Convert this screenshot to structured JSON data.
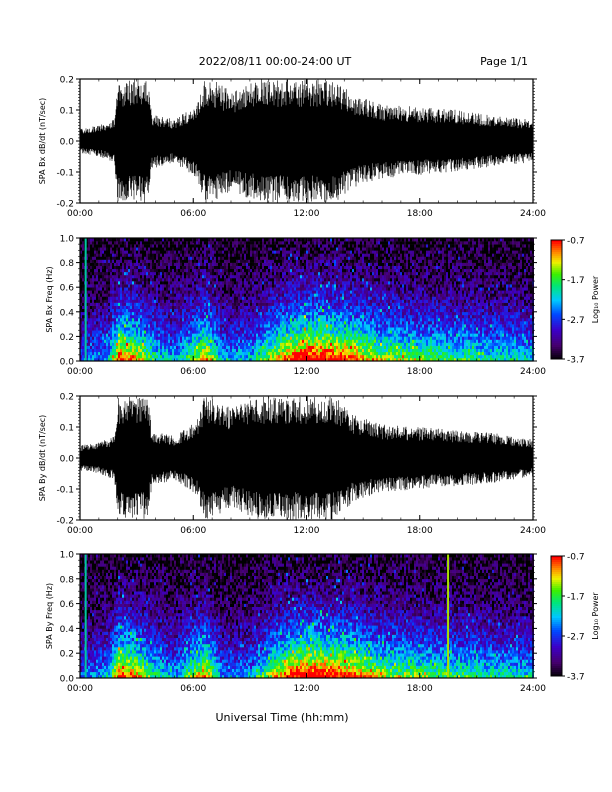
{
  "header": {
    "date_range": "2022/08/11  00:00-24:00 UT",
    "page": "Page 1/1"
  },
  "x_axis": {
    "label": "Universal Time (hh:mm)",
    "range_hours": [
      0,
      24
    ],
    "ticks": [
      "00:00",
      "06:00",
      "12:00",
      "18:00",
      "24:00"
    ]
  },
  "chart_data": [
    {
      "type": "line",
      "ylabel": "SPA Bx dB/dt (nT/sec)",
      "ylim": [
        -0.2,
        0.2
      ],
      "yticks": [
        "0.2",
        "0.1",
        "0.0",
        "-0.1",
        "-0.2"
      ],
      "envelope": {
        "hours": [
          0,
          1,
          1.8,
          2.0,
          3.6,
          3.8,
          5,
          6.2,
          6.6,
          7.0,
          8.0,
          9.5,
          10.5,
          11.5,
          12.5,
          13.5,
          14.5,
          16,
          18,
          20,
          22,
          24
        ],
        "amplitude": [
          0.04,
          0.05,
          0.07,
          0.2,
          0.2,
          0.09,
          0.07,
          0.12,
          0.2,
          0.2,
          0.16,
          0.2,
          0.2,
          0.2,
          0.2,
          0.2,
          0.15,
          0.12,
          0.11,
          0.1,
          0.08,
          0.07
        ]
      }
    },
    {
      "type": "heatmap",
      "ylabel": "SPA Bx Freq (Hz)",
      "ylim": [
        0,
        1.0
      ],
      "yticks": [
        "1.0",
        "0.8",
        "0.6",
        "0.4",
        "0.2",
        "0.0"
      ],
      "colorbar": {
        "label": "Log₁₀ Power",
        "ticks": [
          "-0.7",
          "-1.7",
          "-2.7",
          "-3.7"
        ],
        "range": [
          -3.7,
          -0.7
        ]
      },
      "activity": {
        "hours": [
          0,
          1.5,
          2.0,
          3.0,
          4.0,
          5.0,
          6.2,
          6.6,
          7.5,
          9.0,
          10.5,
          12.0,
          13.0,
          14.0,
          16.0,
          18.0,
          20.0,
          22.0,
          24.0
        ],
        "level": [
          0.3,
          0.45,
          0.85,
          0.75,
          0.5,
          0.4,
          0.7,
          0.8,
          0.4,
          0.45,
          0.75,
          0.95,
          0.9,
          0.85,
          0.65,
          0.6,
          0.55,
          0.5,
          0.45
        ]
      },
      "spikes_hours": [
        0.3
      ]
    },
    {
      "type": "line",
      "ylabel": "SPA By dB/dt (nT/sec)",
      "ylim": [
        -0.2,
        0.2
      ],
      "yticks": [
        "0.2",
        "0.1",
        "0.0",
        "-0.1",
        "-0.2"
      ],
      "envelope": {
        "hours": [
          0,
          1,
          1.8,
          2.0,
          3.6,
          3.8,
          5,
          6.2,
          6.6,
          7.0,
          8.0,
          9.5,
          10.5,
          11.5,
          12.5,
          13.5,
          14.5,
          16,
          18,
          20,
          22,
          24
        ],
        "amplitude": [
          0.04,
          0.05,
          0.07,
          0.2,
          0.2,
          0.09,
          0.07,
          0.12,
          0.2,
          0.2,
          0.16,
          0.2,
          0.2,
          0.2,
          0.2,
          0.2,
          0.14,
          0.11,
          0.1,
          0.09,
          0.08,
          0.06
        ]
      }
    },
    {
      "type": "heatmap",
      "ylabel": "SPA By Freq (Hz)",
      "ylim": [
        0,
        1.0
      ],
      "yticks": [
        "1.0",
        "0.8",
        "0.6",
        "0.4",
        "0.2",
        "0.0"
      ],
      "colorbar": {
        "label": "Log₁₀ Power",
        "ticks": [
          "-0.7",
          "-1.7",
          "-2.7",
          "-3.7"
        ],
        "range": [
          -3.7,
          -0.7
        ]
      },
      "activity": {
        "hours": [
          0,
          1.5,
          2.0,
          3.0,
          4.0,
          5.0,
          6.2,
          6.6,
          7.5,
          9.0,
          10.5,
          12.0,
          13.0,
          14.0,
          16.0,
          18.0,
          20.0,
          22.0,
          24.0
        ],
        "level": [
          0.3,
          0.45,
          0.85,
          0.75,
          0.5,
          0.4,
          0.7,
          0.8,
          0.35,
          0.4,
          0.75,
          0.95,
          0.9,
          0.85,
          0.65,
          0.6,
          0.55,
          0.5,
          0.45
        ]
      },
      "spikes_hours": [
        0.3,
        19.5
      ]
    }
  ]
}
